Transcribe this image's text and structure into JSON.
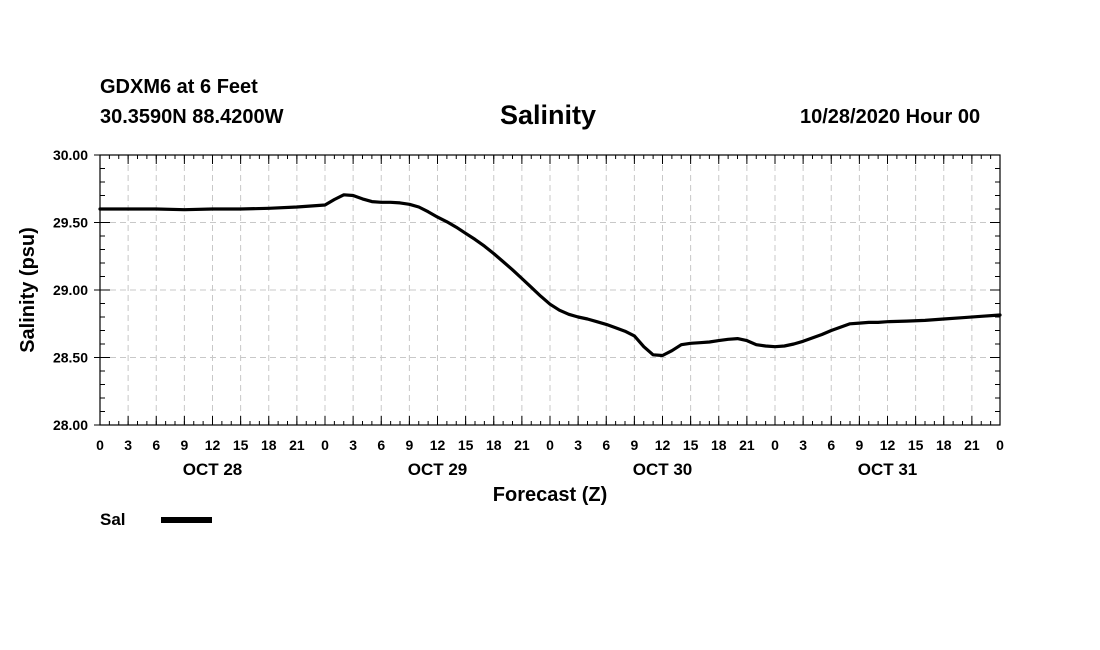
{
  "header": {
    "station": "GDXM6 at 6 Feet",
    "coords": "30.3590N 88.4200W",
    "title": "Salinity",
    "runtime": "10/28/2020 Hour 00"
  },
  "legend": {
    "label": "Sal"
  },
  "chart_data": {
    "type": "line",
    "title": "Salinity",
    "ylabel": "Salinity (psu)",
    "xlabel": "Forecast (Z)",
    "ylim": [
      28.0,
      30.0
    ],
    "yticks": [
      28.0,
      28.5,
      29.0,
      29.5,
      30.0
    ],
    "ytick_labels": [
      "28.00",
      "28.50",
      "29.00",
      "29.50",
      "30.00"
    ],
    "xlim": [
      0,
      96
    ],
    "xticks": [
      0,
      3,
      6,
      9,
      12,
      15,
      18,
      21,
      24,
      27,
      30,
      33,
      36,
      39,
      42,
      45,
      48,
      51,
      54,
      57,
      60,
      63,
      66,
      69,
      72,
      75,
      78,
      81,
      84,
      87,
      90,
      93,
      96
    ],
    "xtick_labels": [
      "0",
      "3",
      "6",
      "9",
      "12",
      "15",
      "18",
      "21",
      "0",
      "3",
      "6",
      "9",
      "12",
      "15",
      "18",
      "21",
      "0",
      "3",
      "6",
      "9",
      "12",
      "15",
      "18",
      "21",
      "0",
      "3",
      "6",
      "9",
      "12",
      "15",
      "18",
      "21",
      "0"
    ],
    "day_labels": [
      {
        "label": "OCT 28",
        "at": 12
      },
      {
        "label": "OCT 29",
        "at": 36
      },
      {
        "label": "OCT 30",
        "at": 60
      },
      {
        "label": "OCT 31",
        "at": 84
      }
    ],
    "grid": true,
    "legend": "bottom-left",
    "series": [
      {
        "name": "Sal",
        "color": "#000000",
        "x": [
          0,
          3,
          6,
          9,
          12,
          15,
          18,
          21,
          24,
          25,
          26,
          27,
          28,
          29,
          30,
          31,
          32,
          33,
          34,
          35,
          36,
          37,
          38,
          39,
          40,
          41,
          42,
          43,
          44,
          45,
          46,
          47,
          48,
          49,
          50,
          51,
          52,
          53,
          54,
          55,
          56,
          57,
          58,
          59,
          60,
          61,
          62,
          63,
          64,
          65,
          66,
          67,
          68,
          69,
          70,
          71,
          72,
          73,
          74,
          75,
          76,
          77,
          78,
          80,
          81,
          82,
          83,
          84,
          86,
          88,
          90,
          92,
          94,
          96
        ],
        "y": [
          29.6,
          29.6,
          29.6,
          29.595,
          29.6,
          29.6,
          29.605,
          29.615,
          29.63,
          29.67,
          29.705,
          29.7,
          29.675,
          29.655,
          29.65,
          29.65,
          29.645,
          29.635,
          29.615,
          29.58,
          29.54,
          29.505,
          29.465,
          29.42,
          29.375,
          29.325,
          29.27,
          29.21,
          29.15,
          29.085,
          29.02,
          28.955,
          28.895,
          28.85,
          28.82,
          28.8,
          28.785,
          28.765,
          28.745,
          28.72,
          28.695,
          28.66,
          28.58,
          28.52,
          28.515,
          28.55,
          28.595,
          28.605,
          28.61,
          28.615,
          28.625,
          28.635,
          28.64,
          28.625,
          28.595,
          28.585,
          28.58,
          28.585,
          28.6,
          28.62,
          28.645,
          28.67,
          28.7,
          28.75,
          28.755,
          28.76,
          28.76,
          28.765,
          28.77,
          28.775,
          28.785,
          28.795,
          28.805,
          28.815
        ]
      }
    ]
  }
}
